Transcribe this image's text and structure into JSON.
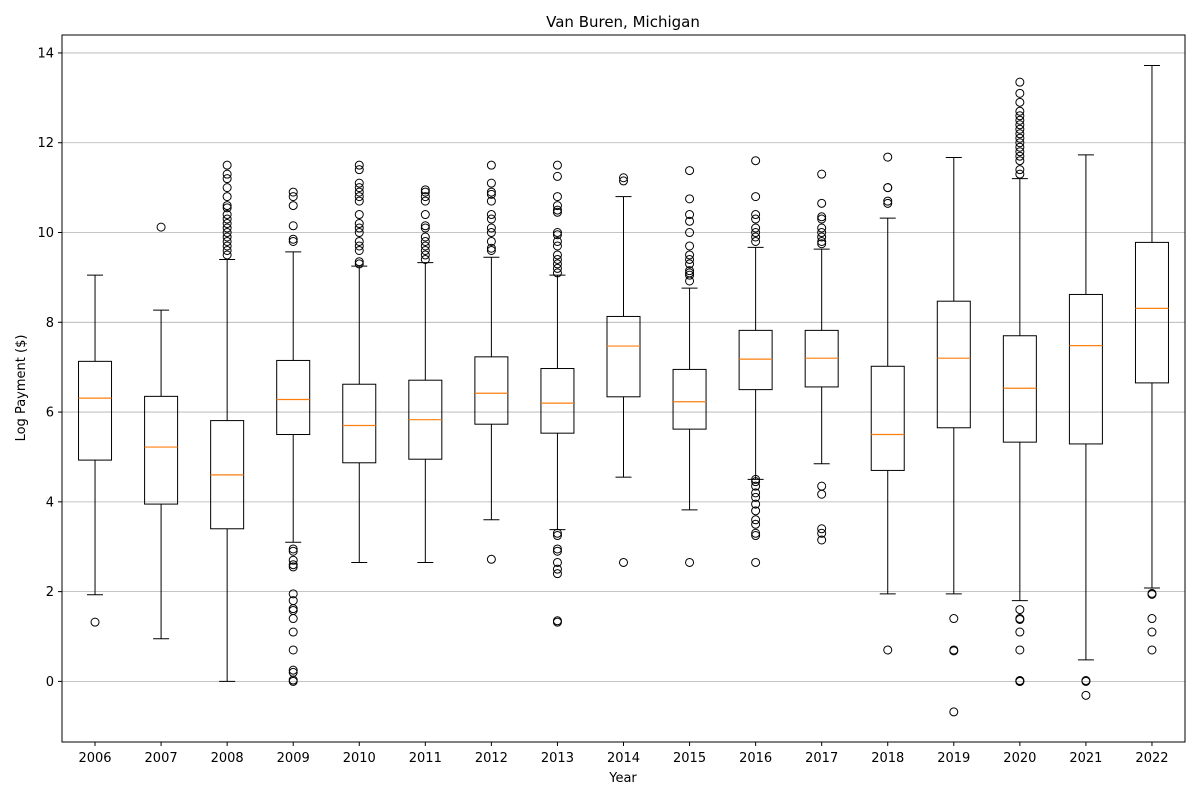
{
  "chart_data": {
    "type": "boxplot",
    "title": "Van Buren, Michigan",
    "xlabel": "Year",
    "ylabel": "Log Payment ($)",
    "ylim": [
      -1.35,
      14.4
    ],
    "yticks": [
      0,
      2,
      4,
      6,
      8,
      10,
      12,
      14
    ],
    "grid": "horizontal",
    "colors": {
      "box": "#000000",
      "median": "#ff7f0e",
      "grid": "#b0b0b0"
    },
    "categories": [
      "2006",
      "2007",
      "2008",
      "2009",
      "2010",
      "2011",
      "2012",
      "2013",
      "2014",
      "2015",
      "2016",
      "2017",
      "2018",
      "2019",
      "2020",
      "2021",
      "2022"
    ],
    "boxes": [
      {
        "year": "2006",
        "whislo": 1.93,
        "q1": 4.93,
        "med": 6.31,
        "q3": 7.13,
        "whishi": 9.05,
        "fliers": [
          1.32
        ]
      },
      {
        "year": "2007",
        "whislo": 0.95,
        "q1": 3.95,
        "med": 5.22,
        "q3": 6.35,
        "whishi": 8.27,
        "fliers": [
          10.12
        ]
      },
      {
        "year": "2008",
        "whislo": 0.0,
        "q1": 3.4,
        "med": 4.6,
        "q3": 5.81,
        "whishi": 9.4,
        "fliers": [
          9.5,
          9.6,
          9.7,
          9.8,
          9.9,
          10.0,
          10.1,
          10.2,
          10.3,
          10.4,
          10.55,
          10.6,
          10.8,
          11.0,
          11.2,
          11.3,
          11.5
        ]
      },
      {
        "year": "2009",
        "whislo": 3.1,
        "q1": 5.5,
        "med": 6.28,
        "q3": 7.15,
        "whishi": 9.57,
        "fliers": [
          9.8,
          9.85,
          10.15,
          10.6,
          10.8,
          10.9,
          2.95,
          2.9,
          2.7,
          2.6,
          2.55,
          1.95,
          1.8,
          1.62,
          1.58,
          1.4,
          1.1,
          0.7,
          0.25,
          0.2,
          0.03,
          0.0
        ]
      },
      {
        "year": "2010",
        "whislo": 2.65,
        "q1": 4.87,
        "med": 5.7,
        "q3": 6.62,
        "whishi": 9.25,
        "fliers": [
          9.3,
          9.35,
          9.6,
          9.7,
          9.8,
          10.0,
          10.1,
          10.2,
          10.4,
          10.7,
          10.8,
          10.9,
          11.0,
          11.1,
          11.4,
          11.5
        ]
      },
      {
        "year": "2011",
        "whislo": 2.65,
        "q1": 4.95,
        "med": 5.83,
        "q3": 6.71,
        "whishi": 9.33,
        "fliers": [
          9.4,
          9.5,
          9.6,
          9.7,
          9.8,
          9.9,
          10.1,
          10.15,
          10.4,
          10.7,
          10.8,
          10.9,
          10.95
        ]
      },
      {
        "year": "2012",
        "whislo": 3.6,
        "q1": 5.73,
        "med": 6.42,
        "q3": 7.23,
        "whishi": 9.45,
        "fliers": [
          9.6,
          9.65,
          9.8,
          10.0,
          10.1,
          10.3,
          10.4,
          10.7,
          10.85,
          10.9,
          11.1,
          11.5,
          2.72
        ]
      },
      {
        "year": "2013",
        "whislo": 3.38,
        "q1": 5.53,
        "med": 6.2,
        "q3": 6.97,
        "whishi": 9.05,
        "fliers": [
          9.1,
          9.2,
          9.3,
          9.4,
          9.5,
          9.7,
          9.8,
          9.95,
          10.0,
          10.45,
          10.5,
          10.6,
          10.8,
          11.25,
          11.5,
          3.3,
          3.25,
          2.95,
          2.9,
          2.65,
          2.5,
          2.4,
          1.35,
          1.32
        ]
      },
      {
        "year": "2014",
        "whislo": 4.55,
        "q1": 6.34,
        "med": 7.47,
        "q3": 8.13,
        "whishi": 10.8,
        "fliers": [
          11.15,
          11.22,
          2.65
        ]
      },
      {
        "year": "2015",
        "whislo": 3.82,
        "q1": 5.62,
        "med": 6.23,
        "q3": 6.95,
        "whishi": 8.76,
        "fliers": [
          8.92,
          9.05,
          9.1,
          9.15,
          9.3,
          9.4,
          9.5,
          9.7,
          10.0,
          10.25,
          10.4,
          10.75,
          11.38,
          2.65
        ]
      },
      {
        "year": "2016",
        "whislo": 4.5,
        "q1": 6.5,
        "med": 7.18,
        "q3": 7.82,
        "whishi": 9.67,
        "fliers": [
          9.8,
          9.9,
          10.0,
          10.1,
          10.3,
          10.4,
          10.8,
          11.6,
          4.5,
          4.45,
          4.35,
          4.2,
          4.1,
          3.95,
          3.8,
          3.6,
          3.5,
          3.3,
          3.25,
          2.65
        ]
      },
      {
        "year": "2017",
        "whislo": 4.85,
        "q1": 6.56,
        "med": 7.2,
        "q3": 7.82,
        "whishi": 9.63,
        "fliers": [
          9.75,
          9.8,
          9.9,
          10.0,
          10.1,
          10.3,
          10.35,
          10.65,
          11.3,
          4.35,
          4.17,
          3.4,
          3.3,
          3.15
        ]
      },
      {
        "year": "2018",
        "whislo": 1.95,
        "q1": 4.7,
        "med": 5.5,
        "q3": 7.02,
        "whishi": 10.32,
        "fliers": [
          10.65,
          10.7,
          11.0,
          11.0,
          11.68,
          0.7
        ]
      },
      {
        "year": "2019",
        "whislo": 1.95,
        "q1": 5.65,
        "med": 7.2,
        "q3": 8.47,
        "whishi": 11.67,
        "fliers": [
          1.4,
          0.7,
          0.68,
          -0.68
        ]
      },
      {
        "year": "2020",
        "whislo": 1.8,
        "q1": 5.33,
        "med": 6.53,
        "q3": 7.7,
        "whishi": 11.2,
        "fliers": [
          11.3,
          11.4,
          11.6,
          11.7,
          11.8,
          11.9,
          12.0,
          12.1,
          12.2,
          12.3,
          12.4,
          12.5,
          12.6,
          12.7,
          12.9,
          13.1,
          13.35,
          1.6,
          1.4,
          1.38,
          1.1,
          0.7,
          0.02,
          0.0,
          0.0
        ]
      },
      {
        "year": "2021",
        "whislo": 0.48,
        "q1": 5.29,
        "med": 7.48,
        "q3": 8.62,
        "whishi": 11.73,
        "fliers": [
          0.02,
          0.0,
          -0.31
        ]
      },
      {
        "year": "2022",
        "whislo": 2.08,
        "q1": 6.65,
        "med": 8.31,
        "q3": 9.78,
        "whishi": 13.72,
        "fliers": [
          1.96,
          1.94,
          1.4,
          1.1,
          0.7
        ]
      }
    ]
  }
}
